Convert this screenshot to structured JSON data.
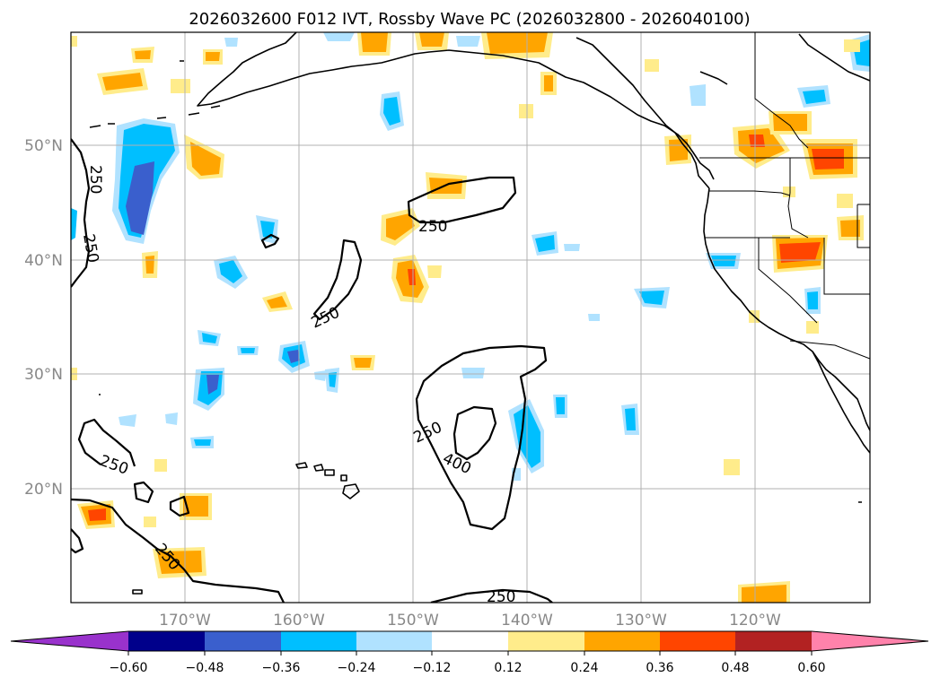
{
  "title": "2026032600 F012 IVT, Rossby Wave PC (2026032800 - 2026040100)",
  "lat_labels": [
    "50°N",
    "40°N",
    "30°N",
    "20°N"
  ],
  "lon_labels": [
    "170°W",
    "160°W",
    "150°W",
    "140°W",
    "130°W",
    "120°W"
  ],
  "colorbar": {
    "ticks": [
      "−0.60",
      "−0.48",
      "−0.36",
      "−0.24",
      "−0.12",
      "0.12",
      "0.24",
      "0.36",
      "0.48",
      "0.60"
    ],
    "colors": [
      "#9932cc",
      "#00008b",
      "#3a5fcd",
      "#00bfff",
      "#b0e2ff",
      "#ffffff",
      "#ffec8b",
      "#ffa500",
      "#ff4500",
      "#b22222",
      "#ff82ab"
    ]
  },
  "contour_labels": [
    "250",
    "250",
    "250",
    "250",
    "250",
    "250",
    "400",
    "250",
    "250"
  ],
  "anomaly_colors": {
    "neg_light": "#b0e2ff",
    "neg_mid": "#00bfff",
    "neg_strong": "#3a5fcd",
    "pos_light": "#ffec8b",
    "pos_mid": "#ffa500",
    "pos_strong": "#ff4500"
  }
}
